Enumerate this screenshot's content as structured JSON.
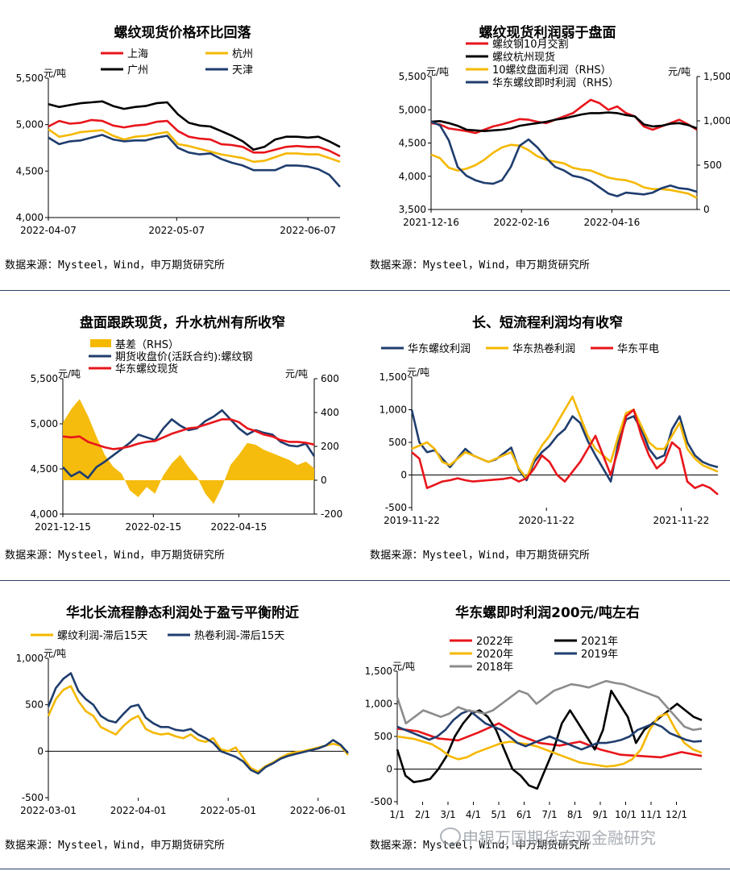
{
  "source_text": "数据来源：Mysteel，Wind，申万期货研究所",
  "watermark": "申银万国期货宏观金融研究",
  "colors": {
    "red": "#e8151b",
    "black": "#000000",
    "yellow": "#f5b800",
    "navy": "#1f3d6e",
    "grey": "#8c8c8c",
    "axis": "#000000"
  },
  "chart_data": [
    {
      "id": "c1",
      "type": "line",
      "title": "螺纹现货价格环比回落",
      "y_unit": "元/吨",
      "ylim": [
        4000,
        5500
      ],
      "yticks": [
        4000,
        4500,
        5000,
        5500
      ],
      "xticks": [
        "2022-04-07",
        "2022-05-07",
        "2022-06-07"
      ],
      "xtick_pos": [
        0,
        0.44,
        0.89
      ],
      "legend": [
        "上海",
        "杭州",
        "广州",
        "天津"
      ],
      "series": [
        {
          "name": "上海",
          "color": "red",
          "values": [
            4980,
            5040,
            5010,
            5020,
            5050,
            5040,
            4990,
            4970,
            4990,
            5000,
            5030,
            5040,
            4930,
            4870,
            4850,
            4840,
            4790,
            4780,
            4760,
            4700,
            4700,
            4730,
            4760,
            4770,
            4760,
            4760,
            4720,
            4660
          ]
        },
        {
          "name": "杭州",
          "color": "yellow",
          "values": [
            4950,
            4870,
            4890,
            4920,
            4930,
            4940,
            4880,
            4840,
            4870,
            4880,
            4900,
            4920,
            4790,
            4770,
            4740,
            4710,
            4680,
            4660,
            4640,
            4600,
            4610,
            4650,
            4690,
            4690,
            4680,
            4680,
            4640,
            4600
          ]
        },
        {
          "name": "广州",
          "color": "black",
          "values": [
            5220,
            5190,
            5210,
            5230,
            5240,
            5250,
            5200,
            5170,
            5190,
            5200,
            5230,
            5240,
            5110,
            5020,
            4990,
            4980,
            4930,
            4880,
            4820,
            4730,
            4760,
            4840,
            4870,
            4870,
            4860,
            4870,
            4820,
            4760
          ]
        },
        {
          "name": "天津",
          "color": "navy",
          "values": [
            4860,
            4790,
            4820,
            4830,
            4860,
            4890,
            4840,
            4820,
            4830,
            4830,
            4860,
            4880,
            4750,
            4700,
            4680,
            4690,
            4630,
            4590,
            4560,
            4510,
            4510,
            4510,
            4560,
            4560,
            4550,
            4520,
            4460,
            4330
          ]
        }
      ]
    },
    {
      "id": "c2",
      "type": "line",
      "title": "螺纹现货利润弱于盘面",
      "y_unit": "元/吨",
      "y2_unit": "元/吨",
      "ylim": [
        3500,
        5500
      ],
      "yticks": [
        3500,
        4000,
        4500,
        5000,
        5500
      ],
      "y2lim": [
        0,
        1500
      ],
      "y2ticks": [
        0,
        500,
        1000,
        1500
      ],
      "xticks": [
        "2021-12-16",
        "2022-02-16",
        "2022-04-16"
      ],
      "xtick_pos": [
        0,
        0.34,
        0.68
      ],
      "legend": [
        "螺纹钢10月交割",
        "螺纹杭州现货",
        "10螺纹盘面利润（RHS）",
        "华东螺纹即时利润（RHS）"
      ],
      "series": [
        {
          "name": "螺纹钢10月交割",
          "color": "red",
          "axis": "left",
          "values": [
            4800,
            4780,
            4720,
            4700,
            4680,
            4650,
            4700,
            4750,
            4780,
            4820,
            4860,
            4850,
            4820,
            4800,
            4850,
            4900,
            4950,
            5050,
            5150,
            5100,
            5000,
            5050,
            4950,
            4900,
            4750,
            4700,
            4750,
            4800,
            4850,
            4780,
            4700
          ]
        },
        {
          "name": "螺纹杭州现货",
          "color": "black",
          "axis": "left",
          "values": [
            4820,
            4830,
            4800,
            4760,
            4700,
            4690,
            4680,
            4690,
            4700,
            4720,
            4760,
            4780,
            4800,
            4820,
            4850,
            4870,
            4900,
            4930,
            4950,
            4950,
            4960,
            4950,
            4920,
            4900,
            4780,
            4750,
            4760,
            4790,
            4800,
            4770,
            4720
          ]
        },
        {
          "name": "10螺纹盘面利润（RHS）",
          "color": "yellow",
          "axis": "right",
          "values": [
            620,
            580,
            470,
            440,
            460,
            500,
            560,
            640,
            700,
            730,
            720,
            670,
            600,
            560,
            540,
            520,
            470,
            450,
            440,
            400,
            360,
            340,
            330,
            300,
            250,
            230,
            230,
            220,
            200,
            180,
            130
          ]
        },
        {
          "name": "华东螺纹即时利润（RHS）",
          "color": "navy",
          "axis": "right",
          "values": [
            990,
            950,
            780,
            480,
            380,
            330,
            300,
            290,
            330,
            480,
            720,
            790,
            700,
            580,
            480,
            440,
            380,
            360,
            320,
            250,
            180,
            150,
            190,
            180,
            170,
            190,
            240,
            270,
            240,
            230,
            200
          ]
        }
      ]
    },
    {
      "id": "c3",
      "type": "line",
      "title": "盘面跟跌现货，升水杭州有所收窄",
      "y_unit": "元/吨",
      "y2_unit": "元/吨",
      "ylim": [
        4000,
        5500
      ],
      "yticks": [
        4000,
        4500,
        5000,
        5500
      ],
      "y2lim": [
        -200,
        600
      ],
      "y2ticks": [
        -200,
        0,
        200,
        400,
        600
      ],
      "xticks": [
        "2021-12-15",
        "2022-02-15",
        "2022-04-15"
      ],
      "xtick_pos": [
        0,
        0.36,
        0.7
      ],
      "legend": [
        "基差（RHS）",
        "期货收盘价(活跃合约):螺纹钢",
        "华东螺纹现货"
      ],
      "series": [
        {
          "name": "基差（RHS）",
          "color": "yellow",
          "axis": "right",
          "kind": "area",
          "values": [
            340,
            420,
            480,
            380,
            260,
            150,
            80,
            40,
            -60,
            -100,
            -40,
            -80,
            30,
            100,
            150,
            80,
            20,
            -80,
            -140,
            -40,
            90,
            150,
            220,
            210,
            180,
            160,
            140,
            120,
            90,
            110,
            70
          ]
        },
        {
          "name": "期货收盘价(活跃合约):螺纹钢",
          "color": "navy",
          "axis": "left",
          "values": [
            4520,
            4420,
            4470,
            4400,
            4520,
            4580,
            4650,
            4720,
            4790,
            4880,
            4850,
            4820,
            4950,
            5050,
            4980,
            4930,
            4950,
            5030,
            5080,
            5150,
            5050,
            4950,
            4880,
            4930,
            4900,
            4880,
            4800,
            4760,
            4750,
            4780,
            4640
          ]
        },
        {
          "name": "华东螺纹现货",
          "color": "red",
          "axis": "left",
          "values": [
            4860,
            4850,
            4860,
            4800,
            4770,
            4740,
            4720,
            4730,
            4750,
            4780,
            4800,
            4810,
            4850,
            4890,
            4920,
            4950,
            4960,
            4990,
            5020,
            5050,
            5050,
            5020,
            4950,
            4920,
            4880,
            4860,
            4820,
            4800,
            4800,
            4790,
            4770
          ]
        }
      ]
    },
    {
      "id": "c4",
      "type": "line",
      "title": "长、短流程利润均有收窄",
      "y_unit": "元/吨",
      "ylim": [
        -500,
        1500
      ],
      "yticks": [
        -500,
        0,
        500,
        1000,
        1500
      ],
      "xticks": [
        "2019-11-22",
        "2020-11-22",
        "2021-11-22"
      ],
      "xtick_pos": [
        0,
        0.44,
        0.88
      ],
      "legend": [
        "华东螺纹利润",
        "华东热卷利润",
        "华东平电"
      ],
      "series": [
        {
          "name": "华东螺纹利润",
          "color": "navy",
          "values": [
            1000,
            500,
            350,
            380,
            250,
            120,
            260,
            400,
            300,
            250,
            200,
            240,
            330,
            420,
            80,
            -80,
            200,
            350,
            450,
            600,
            700,
            900,
            800,
            520,
            300,
            100,
            -100,
            500,
            850,
            900,
            700,
            400,
            250,
            300,
            700,
            900,
            500,
            300,
            200,
            150,
            120
          ]
        },
        {
          "name": "华东热卷利润",
          "color": "yellow",
          "values": [
            400,
            450,
            500,
            400,
            200,
            150,
            250,
            350,
            300,
            250,
            200,
            250,
            300,
            350,
            100,
            -50,
            250,
            450,
            600,
            800,
            1000,
            1200,
            900,
            600,
            400,
            300,
            200,
            600,
            950,
            1000,
            750,
            500,
            400,
            400,
            600,
            800,
            400,
            250,
            150,
            100,
            50
          ]
        },
        {
          "name": "华东平电",
          "color": "red",
          "values": [
            350,
            250,
            -200,
            -150,
            -100,
            -80,
            -50,
            -80,
            -100,
            -90,
            -80,
            -70,
            -60,
            -40,
            -100,
            -50,
            100,
            300,
            200,
            0,
            -100,
            50,
            200,
            400,
            600,
            300,
            0,
            400,
            900,
            1000,
            600,
            300,
            100,
            200,
            500,
            400,
            -100,
            -200,
            -150,
            -200,
            -300
          ]
        }
      ]
    },
    {
      "id": "c5",
      "type": "line",
      "title": "华北长流程静态利润处于盈亏平衡附近",
      "y_unit": "元/吨",
      "ylim": [
        -500,
        1000
      ],
      "yticks": [
        -500,
        0,
        500,
        1000
      ],
      "xticks": [
        "2022-03-01",
        "2022-04-01",
        "2022-05-01",
        "2022-06-01"
      ],
      "xtick_pos": [
        0,
        0.3,
        0.6,
        0.9
      ],
      "legend": [
        "螺纹利润-滞后15天",
        "热卷利润-滞后15天"
      ],
      "series": [
        {
          "name": "螺纹利润-滞后15天",
          "color": "yellow",
          "values": [
            380,
            560,
            660,
            700,
            540,
            430,
            380,
            260,
            220,
            180,
            270,
            340,
            380,
            240,
            200,
            180,
            190,
            160,
            140,
            180,
            120,
            100,
            140,
            20,
            0,
            40,
            -70,
            -180,
            -220,
            -160,
            -120,
            -70,
            -30,
            -10,
            0,
            20,
            40,
            60,
            80,
            60,
            -40
          ]
        },
        {
          "name": "热卷利润-滞后15天",
          "color": "navy",
          "values": [
            480,
            680,
            780,
            840,
            650,
            560,
            500,
            380,
            330,
            310,
            400,
            480,
            500,
            360,
            300,
            260,
            260,
            230,
            220,
            240,
            180,
            140,
            90,
            0,
            -30,
            -60,
            -110,
            -200,
            -240,
            -170,
            -130,
            -80,
            -50,
            -30,
            -10,
            10,
            30,
            60,
            120,
            70,
            -20
          ]
        }
      ]
    },
    {
      "id": "c6",
      "type": "line",
      "title": "华东螺即时利润200元/吨左右",
      "y_unit": "元/吨",
      "ylim": [
        -500,
        1500
      ],
      "yticks": [
        -500,
        0,
        500,
        1000,
        1500
      ],
      "xticks": [
        "1/1",
        "2/1",
        "3/1",
        "4/1",
        "5/1",
        "6/1",
        "7/1",
        "8/1",
        "9/1",
        "10/1",
        "11/1",
        "12/1"
      ],
      "legend": [
        "2022年",
        "2021年",
        "2020年",
        "2019年",
        "2018年"
      ],
      "series": [
        {
          "name": "2022年",
          "color": "red",
          "values": [
            620,
            580,
            470,
            440,
            560,
            700,
            520,
            400,
            360,
            420,
            300,
            220,
            200,
            180,
            260,
            200
          ]
        },
        {
          "name": "2021年",
          "color": "black",
          "values": [
            300,
            -100,
            -200,
            -180,
            -150,
            0,
            200,
            500,
            700,
            850,
            900,
            800,
            600,
            300,
            0,
            -100,
            -250,
            -300,
            0,
            300,
            700,
            900,
            700,
            500,
            300,
            600,
            1200,
            1000,
            800,
            400,
            600,
            700,
            800,
            900,
            1000,
            900,
            800,
            750
          ]
        },
        {
          "name": "2020年",
          "color": "yellow",
          "values": [
            500,
            480,
            460,
            420,
            380,
            300,
            200,
            150,
            180,
            250,
            300,
            350,
            400,
            420,
            400,
            380,
            350,
            300,
            250,
            200,
            150,
            100,
            80,
            60,
            40,
            50,
            80,
            150,
            300,
            600,
            800,
            850,
            600,
            400,
            300,
            250
          ]
        },
        {
          "name": "2019年",
          "color": "navy",
          "values": [
            650,
            600,
            550,
            500,
            450,
            500,
            600,
            750,
            850,
            900,
            800,
            700,
            650,
            600,
            500,
            400,
            350,
            400,
            450,
            500,
            450,
            400,
            350,
            300,
            350,
            400,
            400,
            420,
            450,
            500,
            600,
            650,
            700,
            650,
            550,
            500,
            450,
            420,
            430
          ]
        },
        {
          "name": "2018年",
          "color": "grey",
          "values": [
            1100,
            700,
            800,
            900,
            850,
            800,
            850,
            950,
            900,
            880,
            850,
            900,
            1000,
            1100,
            1200,
            1150,
            1000,
            1100,
            1200,
            1250,
            1300,
            1280,
            1250,
            1300,
            1350,
            1320,
            1300,
            1250,
            1200,
            1150,
            1100,
            950,
            800,
            650,
            600,
            620
          ]
        }
      ]
    }
  ]
}
